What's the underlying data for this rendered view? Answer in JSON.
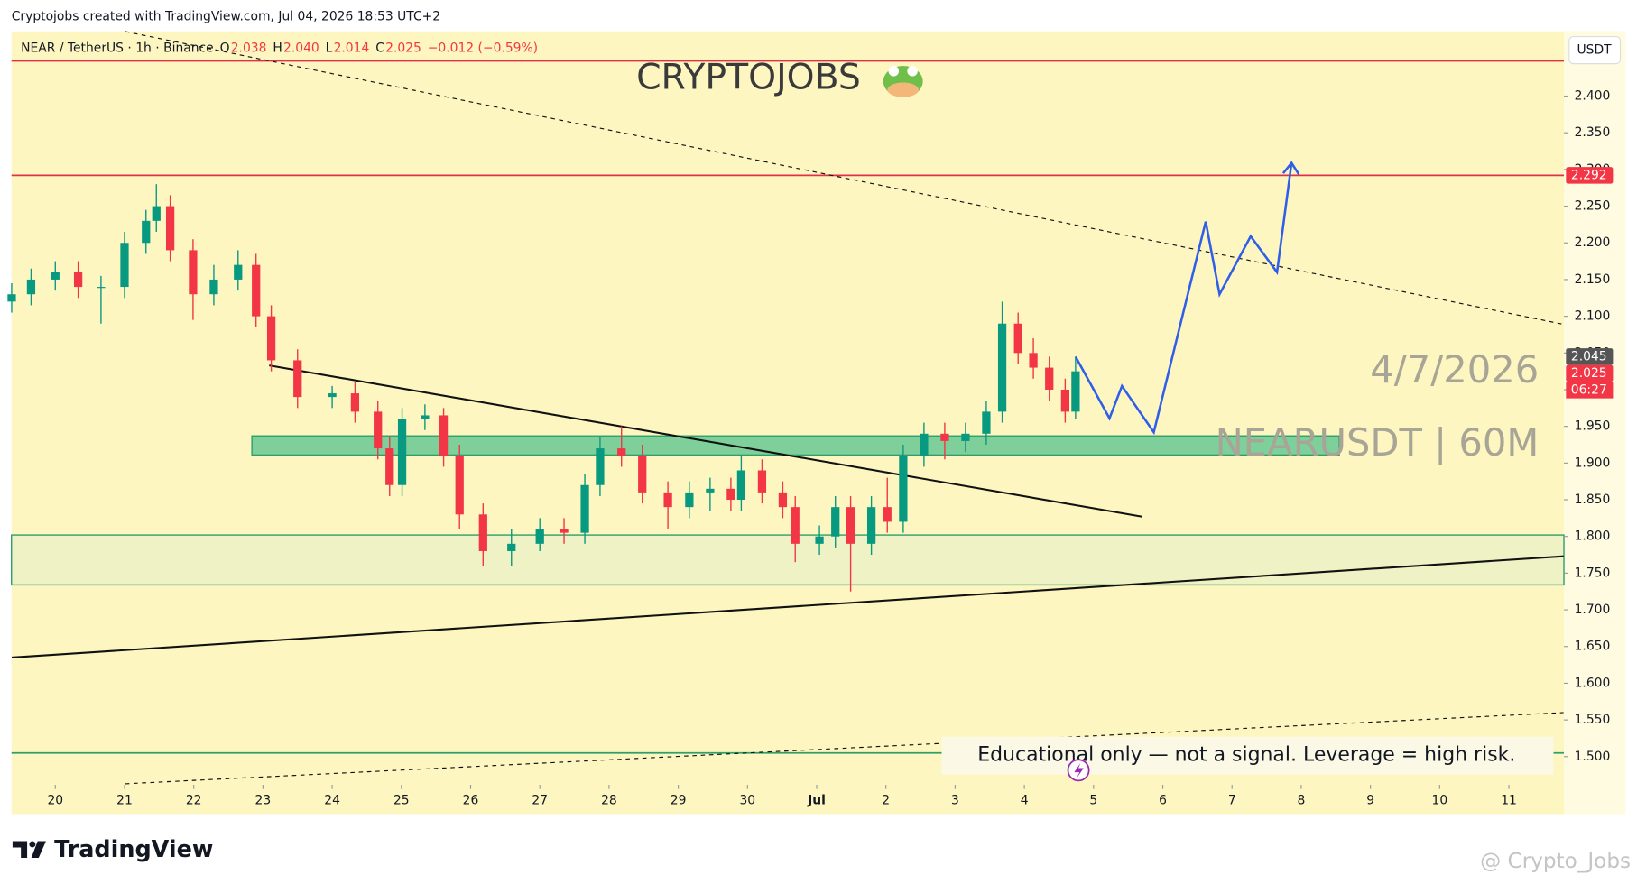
{
  "chart_data": {
    "type": "candlestick",
    "credit": "Cryptojobs created with TradingView.com, Jul 04, 2026 18:53 UTC+2",
    "symbol": "NEAR / TetherUS · 1h · Binance",
    "ohlc_legend": [
      {
        "key": "O",
        "value": "2.038"
      },
      {
        "key": "H",
        "value": "2.040"
      },
      {
        "key": "L",
        "value": "2.014"
      },
      {
        "key": "C",
        "value": "2.025"
      }
    ],
    "change": "−0.012 (−0.59%)",
    "title": "CRYPTOJOBS",
    "date_note": "4/7/2026",
    "pair_note": "NEARUSDT | 60M",
    "disclaimer": "Educational only — not a signal. Leverage  = high risk.",
    "currency": "USDT",
    "brand": "TradingView",
    "watermark": "@ Crypto_Jobs",
    "countdown": "06:27",
    "up_color": "#089981",
    "down_color": "#f23645",
    "xlim": [
      -0.633,
      21.795
    ],
    "ylim": [
      1.4616,
      2.4882
    ],
    "xticks": [
      {
        "value": 0,
        "label": "20"
      },
      {
        "value": 1,
        "label": "21"
      },
      {
        "value": 2,
        "label": "22"
      },
      {
        "value": 3,
        "label": "23"
      },
      {
        "value": 4,
        "label": "24"
      },
      {
        "value": 5,
        "label": "25"
      },
      {
        "value": 6,
        "label": "26"
      },
      {
        "value": 7,
        "label": "27"
      },
      {
        "value": 8,
        "label": "28"
      },
      {
        "value": 9,
        "label": "29"
      },
      {
        "value": 10,
        "label": "30"
      },
      {
        "value": 11,
        "label": "Jul"
      },
      {
        "value": 12,
        "label": "2"
      },
      {
        "value": 13,
        "label": "3"
      },
      {
        "value": 14,
        "label": "4"
      },
      {
        "value": 15,
        "label": "5"
      },
      {
        "value": 16,
        "label": "6"
      },
      {
        "value": 17,
        "label": "7"
      },
      {
        "value": 18,
        "label": "8"
      },
      {
        "value": 19,
        "label": "9"
      },
      {
        "value": 20,
        "label": "10"
      },
      {
        "value": 21,
        "label": "11"
      }
    ],
    "yticks": [
      {
        "value": 1.5,
        "label": "1.500"
      },
      {
        "value": 1.55,
        "label": "1.550"
      },
      {
        "value": 1.6,
        "label": "1.600"
      },
      {
        "value": 1.65,
        "label": "1.650"
      },
      {
        "value": 1.7,
        "label": "1.700"
      },
      {
        "value": 1.75,
        "label": "1.750"
      },
      {
        "value": 1.8,
        "label": "1.800"
      },
      {
        "value": 1.85,
        "label": "1.850"
      },
      {
        "value": 1.9,
        "label": "1.900"
      },
      {
        "value": 1.95,
        "label": "1.950"
      },
      {
        "value": 2.0,
        "label": "2.000"
      },
      {
        "value": 2.05,
        "label": "2.050"
      },
      {
        "value": 2.1,
        "label": "2.100"
      },
      {
        "value": 2.15,
        "label": "2.150"
      },
      {
        "value": 2.2,
        "label": "2.200"
      },
      {
        "value": 2.25,
        "label": "2.250"
      },
      {
        "value": 2.3,
        "label": "2.300"
      },
      {
        "value": 2.35,
        "label": "2.350"
      },
      {
        "value": 2.4,
        "label": "2.400"
      }
    ],
    "x": [
      -0.63,
      -0.35,
      0,
      0.33,
      0.66,
      1.0,
      1.31,
      1.46,
      1.66,
      1.99,
      2.29,
      2.64,
      2.9,
      3.12,
      3.5,
      4.0,
      4.33,
      4.66,
      4.83,
      5.01,
      5.34,
      5.61,
      5.84,
      6.18,
      6.59,
      7.0,
      7.35,
      7.65,
      7.87,
      8.18,
      8.48,
      8.85,
      9.16,
      9.46,
      9.76,
      9.91,
      10.21,
      10.51,
      10.69,
      11.04,
      11.27,
      11.49,
      11.79,
      12.02,
      12.25,
      12.55,
      12.85,
      13.15,
      13.45,
      13.68,
      13.91,
      14.13,
      14.36,
      14.59,
      14.74
    ],
    "open": [
      2.12,
      2.13,
      2.15,
      2.16,
      2.14,
      2.14,
      2.2,
      2.23,
      2.25,
      2.19,
      2.13,
      2.15,
      2.17,
      2.1,
      2.04,
      1.99,
      1.995,
      1.97,
      1.92,
      1.87,
      1.96,
      1.965,
      1.91,
      1.83,
      1.78,
      1.79,
      1.81,
      1.805,
      1.87,
      1.92,
      1.91,
      1.86,
      1.84,
      1.86,
      1.865,
      1.85,
      1.89,
      1.86,
      1.84,
      1.79,
      1.8,
      1.84,
      1.79,
      1.84,
      1.82,
      1.91,
      1.94,
      1.93,
      1.94,
      1.97,
      2.09,
      2.05,
      2.03,
      2.0,
      1.97
    ],
    "high": [
      2.145,
      2.165,
      2.175,
      2.175,
      2.155,
      2.215,
      2.245,
      2.28,
      2.265,
      2.205,
      2.17,
      2.19,
      2.185,
      2.115,
      2.055,
      2.005,
      2.01,
      1.985,
      1.935,
      1.975,
      1.98,
      1.975,
      1.925,
      1.845,
      1.81,
      1.825,
      1.825,
      1.885,
      1.935,
      1.95,
      1.925,
      1.875,
      1.875,
      1.88,
      1.88,
      1.91,
      1.905,
      1.875,
      1.855,
      1.815,
      1.855,
      1.855,
      1.855,
      1.88,
      1.925,
      1.955,
      1.955,
      1.955,
      1.985,
      2.12,
      2.105,
      2.07,
      2.045,
      2.015,
      2.045
    ],
    "low": [
      2.105,
      2.115,
      2.135,
      2.125,
      2.09,
      2.125,
      2.185,
      2.215,
      2.175,
      2.095,
      2.115,
      2.135,
      2.085,
      2.025,
      1.975,
      1.975,
      1.955,
      1.905,
      1.855,
      1.855,
      1.945,
      1.895,
      1.81,
      1.76,
      1.76,
      1.78,
      1.79,
      1.79,
      1.855,
      1.895,
      1.845,
      1.81,
      1.825,
      1.835,
      1.835,
      1.835,
      1.845,
      1.825,
      1.765,
      1.775,
      1.785,
      1.725,
      1.775,
      1.805,
      1.805,
      1.895,
      1.905,
      1.915,
      1.925,
      1.955,
      2.035,
      2.015,
      1.985,
      1.955,
      1.96
    ],
    "close": [
      2.13,
      2.15,
      2.16,
      2.14,
      2.14,
      2.2,
      2.23,
      2.25,
      2.19,
      2.13,
      2.15,
      2.17,
      2.1,
      2.04,
      1.99,
      1.995,
      1.97,
      1.92,
      1.87,
      1.96,
      1.965,
      1.91,
      1.83,
      1.78,
      1.79,
      1.81,
      1.805,
      1.87,
      1.92,
      1.91,
      1.86,
      1.84,
      1.86,
      1.865,
      1.85,
      1.89,
      1.86,
      1.84,
      1.79,
      1.8,
      1.84,
      1.79,
      1.84,
      1.82,
      1.91,
      1.94,
      1.93,
      1.94,
      1.97,
      2.09,
      2.05,
      2.03,
      2.0,
      1.97,
      2.025
    ],
    "levels": [
      {
        "value": 2.448,
        "color": "#e0304a"
      },
      {
        "value": 2.292,
        "color": "#e0304a"
      },
      {
        "value": 1.505,
        "color": "#2e9e6a"
      }
    ],
    "zones": [
      {
        "x": [
          2.84,
          18.55
        ],
        "y": [
          1.911,
          1.937
        ],
        "color": "#7fcf9a"
      },
      {
        "x": [
          -0.633,
          21.795
        ],
        "y": [
          1.734,
          1.802
        ],
        "color": "#eef2c4"
      }
    ],
    "trendlines": [
      {
        "style": "dashed",
        "x": [
          1.01,
          21.79
        ],
        "y": [
          2.488,
          2.089
        ]
      },
      {
        "style": "solid",
        "x": [
          3.09,
          15.7
        ],
        "y": [
          2.033,
          1.827
        ]
      },
      {
        "style": "solid",
        "x": [
          -0.63,
          21.79
        ],
        "y": [
          1.635,
          1.773
        ]
      },
      {
        "style": "dashed",
        "x": [
          1.01,
          21.79
        ],
        "y": [
          1.463,
          1.56
        ]
      }
    ],
    "projection": {
      "color": "#2f5fe8",
      "x": [
        14.74,
        15.23,
        15.41,
        15.87,
        16.62,
        16.82,
        17.27,
        17.65,
        17.86
      ],
      "y": [
        2.045,
        1.961,
        2.005,
        1.942,
        2.229,
        2.13,
        2.209,
        2.16,
        2.309
      ]
    },
    "price_tags": [
      {
        "value": 2.292,
        "color": "#f23645"
      },
      {
        "value": 2.045,
        "color": "#555555"
      },
      {
        "value": 2.025,
        "color": "#f23645"
      }
    ]
  }
}
